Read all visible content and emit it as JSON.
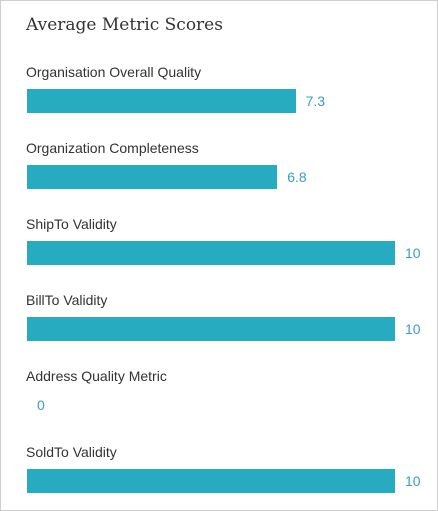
{
  "title": "Average Metric Scores",
  "colors": {
    "bar": "#26abc1",
    "value_text": "#3a9dc4"
  },
  "chart_data": {
    "type": "bar",
    "orientation": "horizontal",
    "title": "Average Metric Scores",
    "xlim": [
      0,
      10
    ],
    "grid": false,
    "legend": "none",
    "categories": [
      "Organisation Overall Quality",
      "Organization Completeness",
      "ShipTo Validity",
      "BillTo Validity",
      "Address Quality Metric",
      "SoldTo Validity"
    ],
    "values": [
      7.3,
      6.8,
      10,
      10,
      0,
      10
    ],
    "value_labels": [
      "7.3",
      "6.8",
      "10",
      "10",
      "0",
      "10"
    ]
  }
}
